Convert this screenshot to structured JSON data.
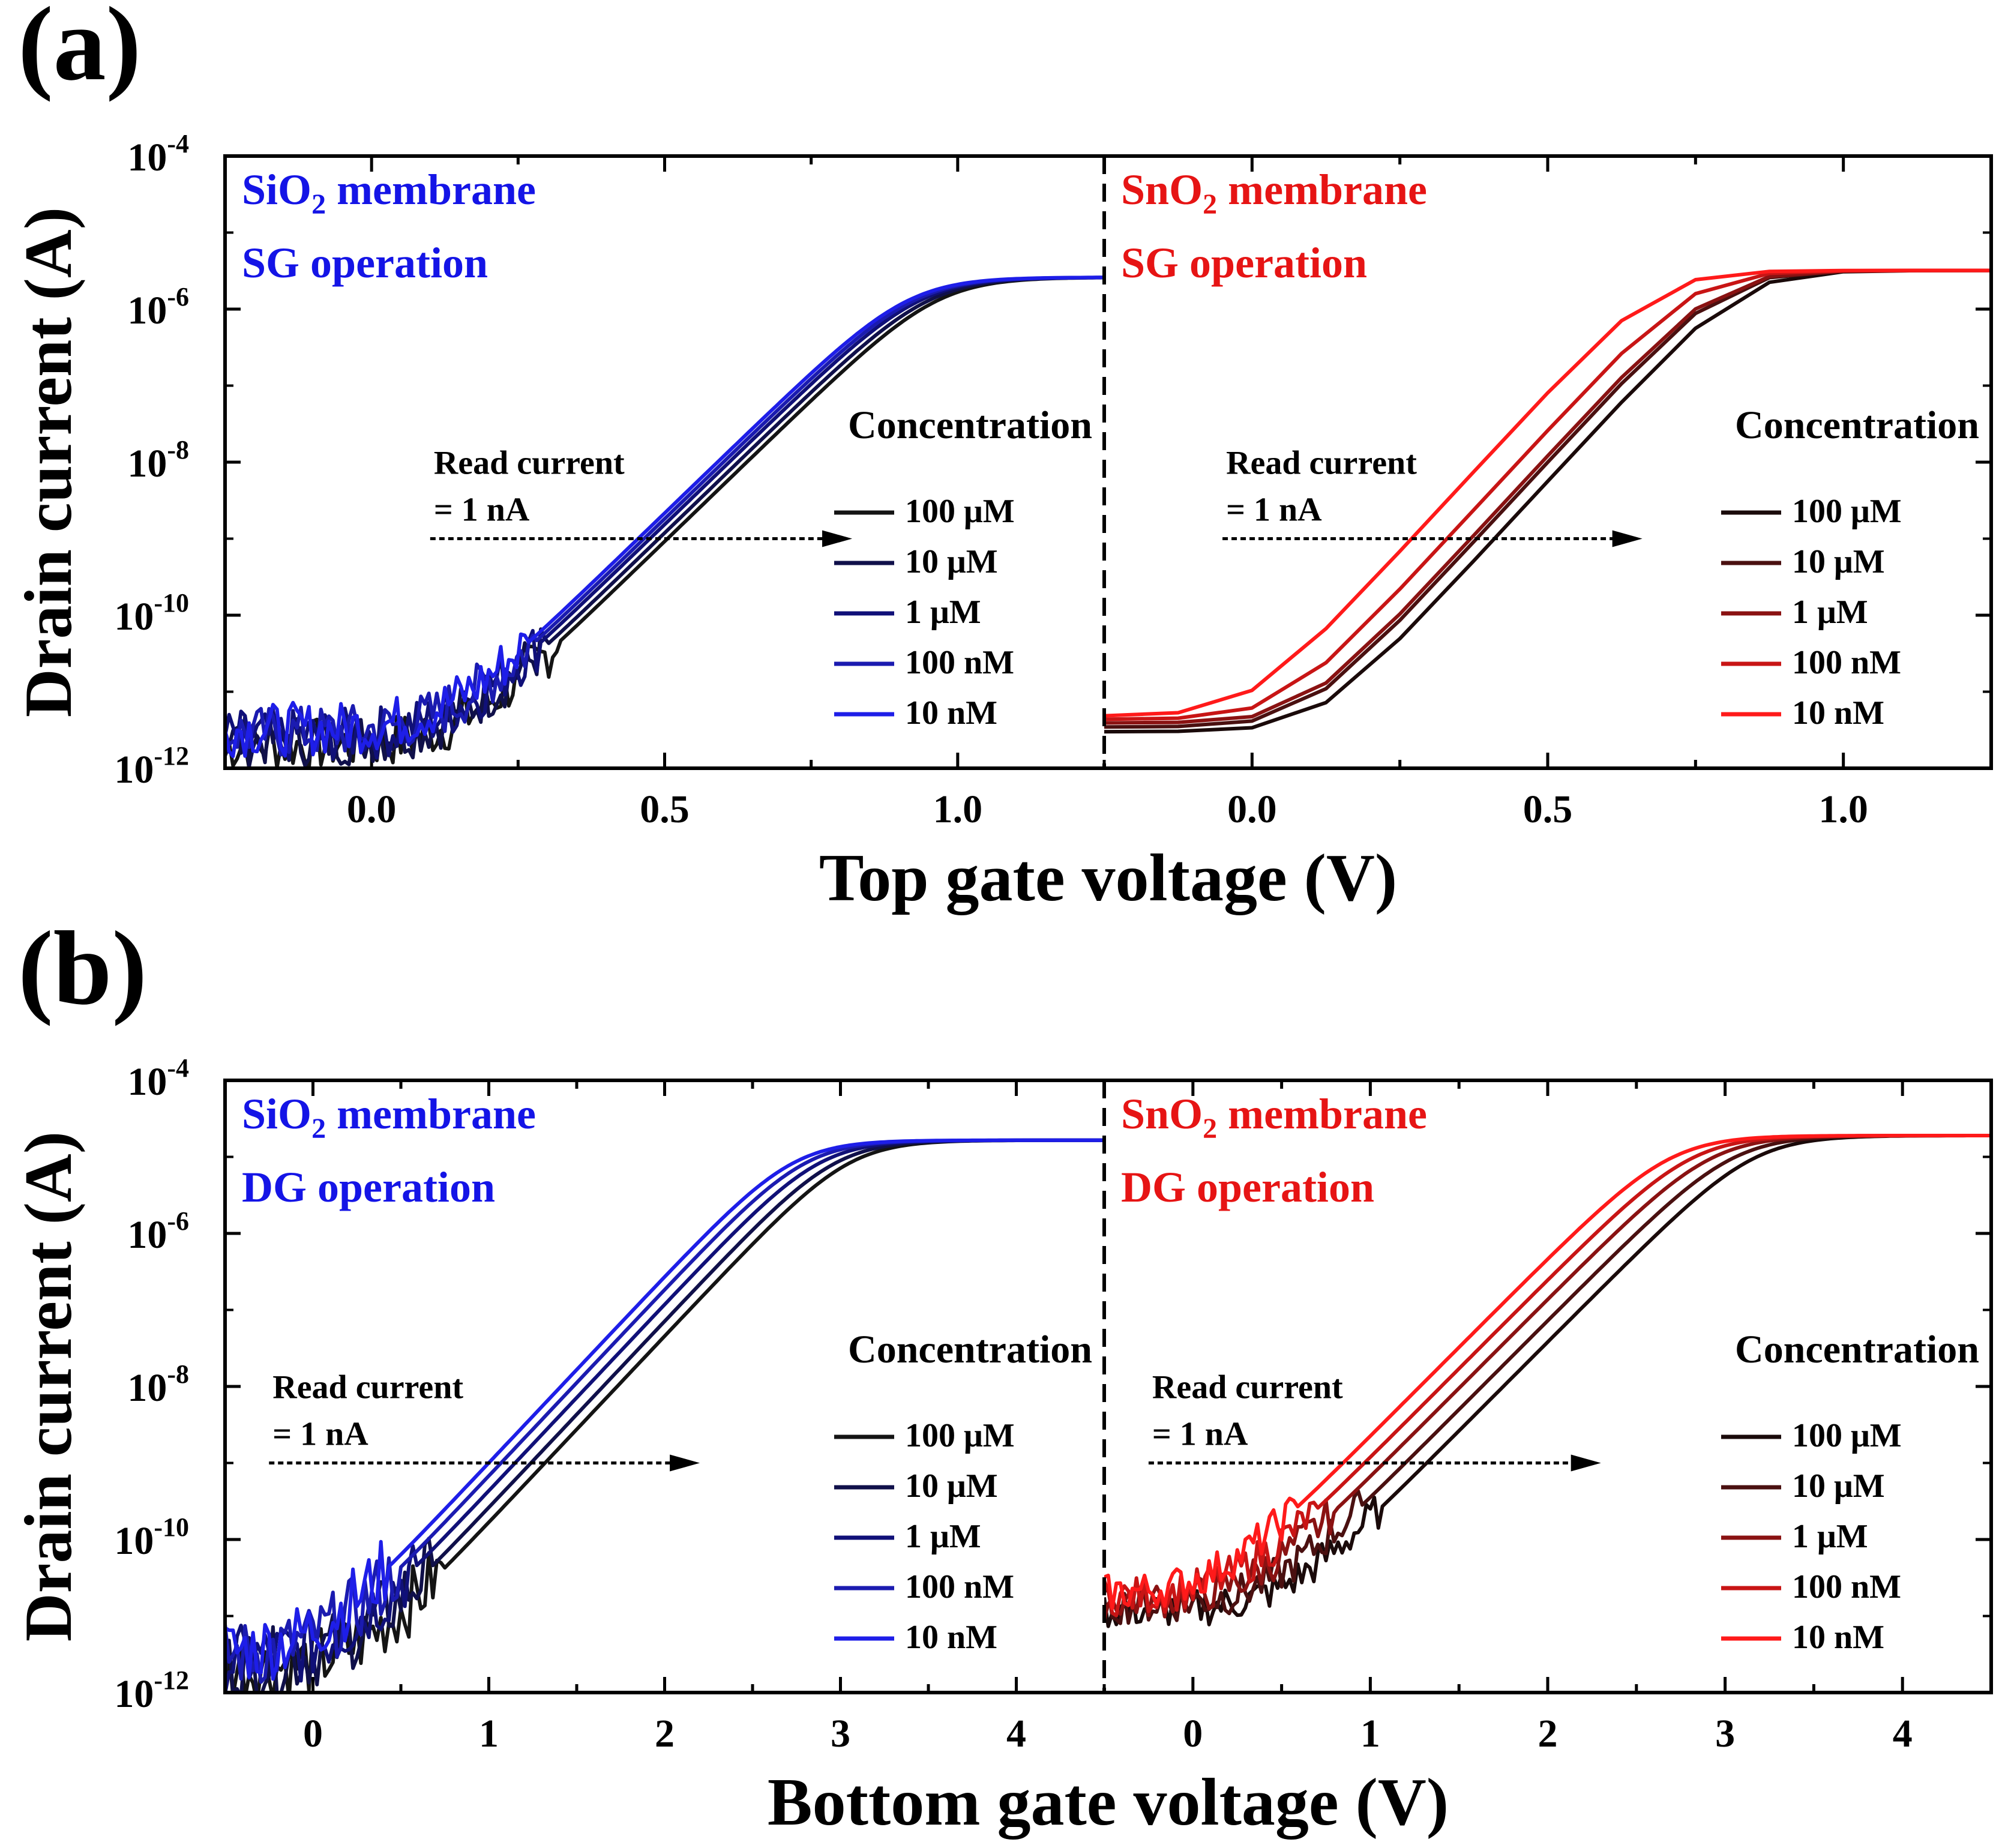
{
  "chart_data": [
    {
      "panel": "(a)",
      "type": "line",
      "yscale": "log",
      "ylabel": "Drain current (A)",
      "xlabel": "Top gate voltage (V)",
      "ylim": [
        1e-12,
        0.0001
      ],
      "y_ticks": [
        {
          "base": "10",
          "exp": "-12"
        },
        {
          "base": "10",
          "exp": "-10"
        },
        {
          "base": "10",
          "exp": "-8"
        },
        {
          "base": "10",
          "exp": "-6"
        },
        {
          "base": "10",
          "exp": "-4"
        }
      ],
      "subplots": [
        {
          "membrane_prefix": "SiO",
          "membrane_sub": "2",
          "membrane_suffix": " membrane",
          "operation": "SG operation",
          "label_color": "#1414e6",
          "xlim": [
            -0.25,
            1.25
          ],
          "x_ticks": [
            "0.0",
            "0.5",
            "1.0"
          ],
          "read_current": [
            "Read current",
            "= 1 nA"
          ],
          "read_arrow_x": [
            0.1,
            0.82
          ],
          "read_level": 1e-09,
          "legend_title": "Concentration",
          "series": [
            {
              "name": "100 μM",
              "color": "#141414",
              "vth": 0.505
            },
            {
              "name": "10 μM",
              "color": "#10104a",
              "vth": 0.49
            },
            {
              "name": "1 μM",
              "color": "#101078",
              "vth": 0.475
            },
            {
              "name": "100 nM",
              "color": "#1b1bb0",
              "vth": 0.465
            },
            {
              "name": "10 nM",
              "color": "#1e1ee8",
              "vth": 0.455
            }
          ],
          "x_min_data": -0.25,
          "x_max_data": 1.25,
          "floor": 2e-12,
          "ss": 0.135,
          "isat": 2.6e-06,
          "noise": 0.35
        },
        {
          "membrane_prefix": "SnO",
          "membrane_sub": "2",
          "membrane_suffix": " membrane",
          "operation": "SG operation",
          "label_color": "#e61414",
          "xlim": [
            -0.25,
            1.25
          ],
          "x_ticks": [
            "0.0",
            "0.5",
            "1.0"
          ],
          "read_current": [
            "Read current",
            "= 1 nA"
          ],
          "read_arrow_x": [
            -0.05,
            0.66
          ],
          "read_level": 1e-09,
          "legend_title": "Concentration",
          "series": [
            {
              "name": "100 μM",
              "color": "#1a0a0a",
              "vth": 0.41
            },
            {
              "name": "10 μM",
              "color": "#4a1010",
              "vth": 0.38
            },
            {
              "name": "1 μM",
              "color": "#8a1212",
              "vth": 0.37
            },
            {
              "name": "100 nM",
              "color": "#c81515",
              "vth": 0.33
            },
            {
              "name": "10 nM",
              "color": "#ff1a1a",
              "vth": 0.27
            }
          ],
          "x_min_data": -0.25,
          "x_max_data": 1.25,
          "floor": 3e-12,
          "ss": 0.12,
          "isat": 3.2e-06,
          "step": 0.125,
          "noise": 0
        }
      ]
    },
    {
      "panel": "(b)",
      "type": "line",
      "yscale": "log",
      "ylabel": "Drain current (A)",
      "xlabel": "Bottom gate voltage (V)",
      "ylim": [
        1e-12,
        0.0001
      ],
      "y_ticks": [
        {
          "base": "10",
          "exp": "-12"
        },
        {
          "base": "10",
          "exp": "-10"
        },
        {
          "base": "10",
          "exp": "-8"
        },
        {
          "base": "10",
          "exp": "-6"
        },
        {
          "base": "10",
          "exp": "-4"
        }
      ],
      "subplots": [
        {
          "membrane_prefix": "SiO",
          "membrane_sub": "2",
          "membrane_suffix": " membrane",
          "operation": "DG operation",
          "label_color": "#1414e6",
          "xlim": [
            -0.5,
            4.5
          ],
          "x_ticks": [
            "0",
            "1",
            "2",
            "3",
            "4"
          ],
          "read_current": [
            "Read current",
            "= 1 nA"
          ],
          "read_arrow_x": [
            -0.25,
            2.2
          ],
          "read_level": 1e-09,
          "legend_title": "Concentration",
          "series": [
            {
              "name": "100 μM",
              "color": "#141414",
              "vth": 1.32
            },
            {
              "name": "10 μM",
              "color": "#10104a",
              "vth": 1.24
            },
            {
              "name": "1 μM",
              "color": "#101078",
              "vth": 1.15
            },
            {
              "name": "100 nM",
              "color": "#1b1bb0",
              "vth": 1.07
            },
            {
              "name": "10 nM",
              "color": "#1e1ee8",
              "vth": 1.0
            }
          ],
          "x_min_data": -0.5,
          "x_max_data": 4.5,
          "floor": 2e-12,
          "ss": 0.41,
          "isat": 1.65e-05,
          "noise": 0.45
        },
        {
          "membrane_prefix": "SnO",
          "membrane_sub": "2",
          "membrane_suffix": " membrane",
          "operation": "DG operation",
          "label_color": "#e61414",
          "xlim": [
            -0.5,
            4.5
          ],
          "x_ticks": [
            "0",
            "1",
            "2",
            "3",
            "4"
          ],
          "read_current": [
            "Read current",
            "= 1 nA"
          ],
          "read_arrow_x": [
            -0.25,
            2.3
          ],
          "read_level": 1e-09,
          "legend_title": "Concentration",
          "series": [
            {
              "name": "100 μM",
              "color": "#1a0a0a",
              "vth": 1.32
            },
            {
              "name": "10 μM",
              "color": "#4a1010",
              "vth": 1.2
            },
            {
              "name": "1 μM",
              "color": "#8a1212",
              "vth": 1.08
            },
            {
              "name": "100 nM",
              "color": "#c81515",
              "vth": 0.97
            },
            {
              "name": "10 nM",
              "color": "#ff1a1a",
              "vth": 0.85
            }
          ],
          "x_min_data": -0.5,
          "x_max_data": 4.5,
          "floor": 1.2e-11,
          "ss": 0.43,
          "isat": 1.9e-05,
          "noise": 0.25
        }
      ]
    }
  ]
}
